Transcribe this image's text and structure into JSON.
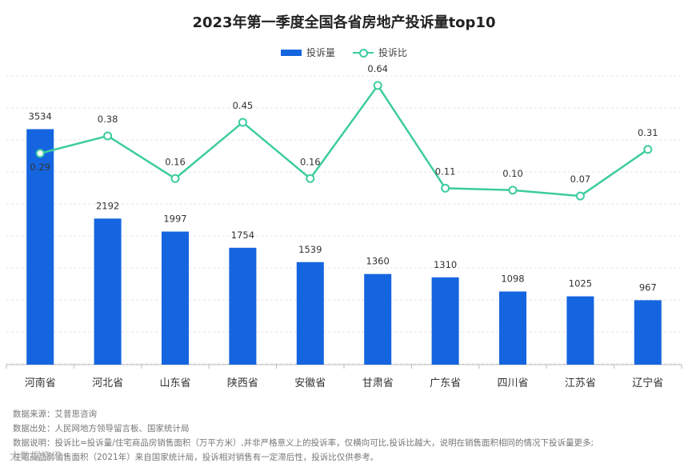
{
  "chart_data": {
    "type": "bar+line",
    "title": "2023年第一季度全国各省房地产投诉量top10",
    "categories": [
      "河南省",
      "河北省",
      "山东省",
      "陕西省",
      "安徽省",
      "甘肃省",
      "广东省",
      "四川省",
      "江苏省",
      "辽宁省"
    ],
    "series": [
      {
        "name": "投诉量",
        "type": "bar",
        "values": [
          3534,
          2192,
          1997,
          1754,
          1539,
          1360,
          1310,
          1098,
          1025,
          967
        ],
        "color": "#1565e0"
      },
      {
        "name": "投诉比",
        "type": "line",
        "values": [
          0.29,
          0.38,
          0.16,
          0.45,
          0.16,
          0.64,
          0.11,
          0.1,
          0.07,
          0.31
        ],
        "labels": [
          "0.29",
          "0.38",
          "0.16",
          "0.45",
          "0.16",
          "0.64",
          "0.11",
          "0.10",
          "0.07",
          "0.31"
        ],
        "color": "#3dcca0"
      }
    ],
    "ylim_bar": [
      0,
      4800
    ],
    "ylim_line": [
      -0.8,
      0.85
    ],
    "grid": true
  },
  "notes": [
    "数据来源：艾普思咨询",
    "数据出处：人民网地方领导留言板、国家统计局",
    "数据说明：投诉比=投诉量/住宅商品房销售面积（万平方米）,并非严格意义上的投诉率，仅横向可比,投诉比越大，说明在销售面积相同的情况下投诉量更多;",
    "住宅商品房销售面积（2021年）来自国家统计局，投诉相对销售有一定滞后性，投诉比仅供参考。"
  ],
  "watermark": "大数据资讯"
}
